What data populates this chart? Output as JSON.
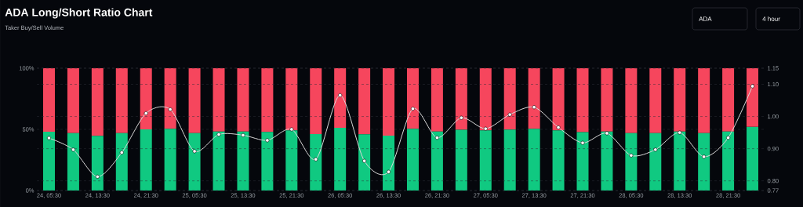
{
  "chart_data": {
    "type": "bar",
    "title": "ADA Long/Short Ratio Chart",
    "subtitle": "Taker Buy/Sell Volume",
    "annotations": [
      "ADA",
      "4 hour"
    ],
    "categories": [
      "24, 05:30",
      null,
      "24, 13:30",
      null,
      "24, 21:30",
      null,
      "25, 05:30",
      null,
      "25, 13:30",
      null,
      "25, 21:30",
      null,
      "26, 05:30",
      null,
      "26, 13:30",
      null,
      "26, 21:30",
      null,
      "27, 05:30",
      null,
      "27, 13:30",
      null,
      "27, 21:30",
      null,
      "28, 05:30",
      null,
      "28, 13:30",
      null,
      "28, 21:30",
      null
    ],
    "stacked": true,
    "grid": "y",
    "marker": "circle",
    "ylim": [
      0,
      100
    ],
    "yticks": [
      {
        "value": 0,
        "label": "0%"
      },
      {
        "value": 50,
        "label": "50%"
      },
      {
        "value": 100,
        "label": "100%"
      }
    ],
    "y2lim": [
      0.77,
      1.15
    ],
    "y2ticks": [
      {
        "value": 0.77,
        "label": "0.77"
      },
      {
        "value": 0.8,
        "label": "0.80"
      },
      {
        "value": 0.9,
        "label": "0.90"
      },
      {
        "value": 1,
        "label": "1.00"
      },
      {
        "value": 1.1,
        "label": "1.10"
      },
      {
        "value": 1.15,
        "label": "1.15"
      }
    ],
    "series": [
      {
        "color": "#10c981",
        "values": [
          48.1,
          47.0,
          44.7,
          47.0,
          50.0,
          50.4,
          47.0,
          48.3,
          48.3,
          47.9,
          49.2,
          46.2,
          51.3,
          46.0,
          44.9,
          50.4,
          48.3,
          49.6,
          49.2,
          49.8,
          50.4,
          49.2,
          47.7,
          48.3,
          47.0,
          47.0,
          48.3,
          47.0,
          48.3,
          52.1
        ]
      },
      {
        "color": "#f6465d",
        "values": [
          51.9,
          53.0,
          55.3,
          53.0,
          50.0,
          49.6,
          53.0,
          51.7,
          51.7,
          52.1,
          50.8,
          53.8,
          48.7,
          54.0,
          55.1,
          49.6,
          51.7,
          50.4,
          50.8,
          50.2,
          49.6,
          50.8,
          52.3,
          51.7,
          53.0,
          53.0,
          51.7,
          53.0,
          51.7,
          47.9
        ]
      },
      {
        "type": "line",
        "axis": "y2",
        "color": "#d9d9d9",
        "values": [
          0.933,
          0.897,
          0.813,
          0.888,
          1.01,
          1.022,
          0.892,
          0.944,
          0.942,
          0.926,
          0.96,
          0.867,
          1.066,
          0.862,
          0.828,
          1.024,
          0.934,
          0.996,
          0.962,
          1.006,
          1.029,
          0.966,
          0.918,
          0.948,
          0.879,
          0.897,
          0.95,
          0.875,
          0.934,
          1.094
        ]
      }
    ]
  }
}
